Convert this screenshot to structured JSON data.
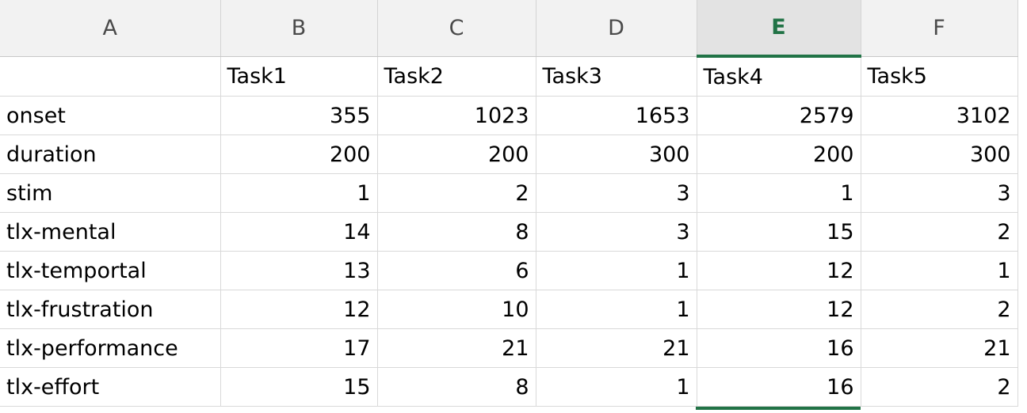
{
  "column_headers": [
    "A",
    "B",
    "C",
    "D",
    "E",
    "F"
  ],
  "active_column": "E",
  "header_row": [
    "",
    "Task1",
    "Task2",
    "Task3",
    "Task4",
    "Task5"
  ],
  "rows": [
    {
      "label": "onset",
      "values": [
        "355",
        "1023",
        "1653",
        "2579",
        "3102"
      ]
    },
    {
      "label": "duration",
      "values": [
        "200",
        "200",
        "300",
        "200",
        "300"
      ]
    },
    {
      "label": "stim",
      "values": [
        "1",
        "2",
        "3",
        "1",
        "3"
      ]
    },
    {
      "label": "tlx-mental",
      "values": [
        "14",
        "8",
        "3",
        "15",
        "2"
      ]
    },
    {
      "label": "tlx-temportal",
      "values": [
        "13",
        "6",
        "1",
        "12",
        "1"
      ]
    },
    {
      "label": "tlx-frustration",
      "values": [
        "12",
        "10",
        "1",
        "12",
        "2"
      ]
    },
    {
      "label": "tlx-performance",
      "values": [
        "17",
        "21",
        "21",
        "16",
        "21"
      ]
    },
    {
      "label": "tlx-effort",
      "values": [
        "15",
        "8",
        "1",
        "16",
        "2"
      ]
    }
  ],
  "colors": {
    "accent": "#217346",
    "header_bg": "#f2f2f2",
    "active_header_bg": "#e3e3e3",
    "gridline": "#d9d9d9"
  }
}
